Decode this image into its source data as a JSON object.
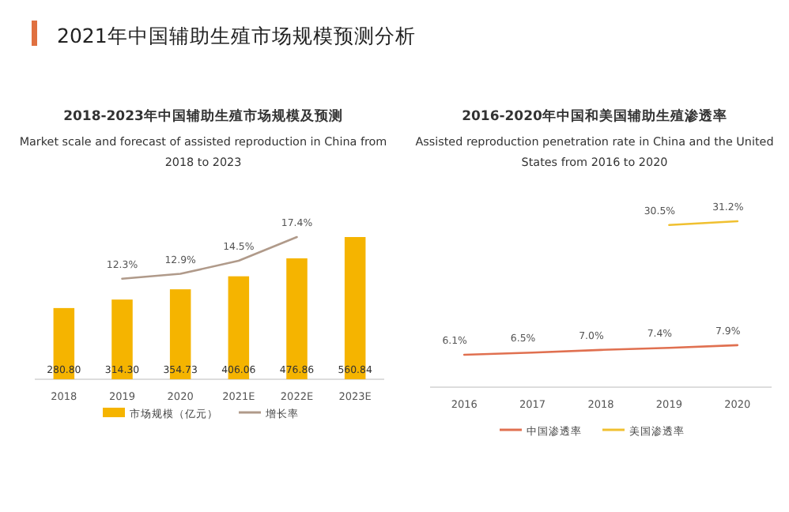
{
  "chart_data": [
    {
      "type": "bar",
      "title": "2018-2023年中国辅助生殖市场规模及预测",
      "subtitle": "Market scale and forecast of assisted reproduction in China from 2018 to 2023",
      "annotations": [
        "2021年中国辅助生殖市场规模预测分析"
      ],
      "categories": [
        "2018",
        "2019",
        "2020",
        "2021E",
        "2022E",
        "2023E"
      ],
      "series": [
        {
          "name": "市场规模（亿元）",
          "type": "bar",
          "color": "#f5b400",
          "values": [
            280.8,
            314.3,
            354.73,
            406.06,
            476.86,
            560.84
          ],
          "value_labels": [
            "280.80",
            "314.30",
            "354.73",
            "406.06",
            "476.86",
            "560.84"
          ]
        },
        {
          "name": "增长率",
          "type": "line",
          "axis": "y2",
          "color": "#b09a8a",
          "values": [
            null,
            12.3,
            12.9,
            14.5,
            17.4,
            null
          ],
          "value_labels": [
            null,
            "12.3%",
            "12.9%",
            "14.5%",
            "17.4%",
            null
          ]
        }
      ],
      "legend": "bottom"
    },
    {
      "type": "line",
      "title": "2016-2020年中国和美国辅助生殖渗透率",
      "subtitle": "Assisted reproduction penetration rate in China and the United States from 2016 to 2020",
      "categories": [
        "2016",
        "2017",
        "2018",
        "2019",
        "2020"
      ],
      "series": [
        {
          "name": "中国渗透率",
          "color": "#e07050",
          "values": [
            6.1,
            6.5,
            7.0,
            7.4,
            7.9
          ],
          "value_labels": [
            "6.1%",
            "6.5%",
            "7.0%",
            "7.4%",
            "7.9%"
          ]
        },
        {
          "name": "美国渗透率",
          "color": "#f0c030",
          "values": [
            null,
            null,
            null,
            30.5,
            31.2
          ],
          "value_labels": [
            null,
            null,
            null,
            "30.5%",
            "31.2%"
          ]
        }
      ],
      "legend": "bottom",
      "marker": "none"
    }
  ]
}
